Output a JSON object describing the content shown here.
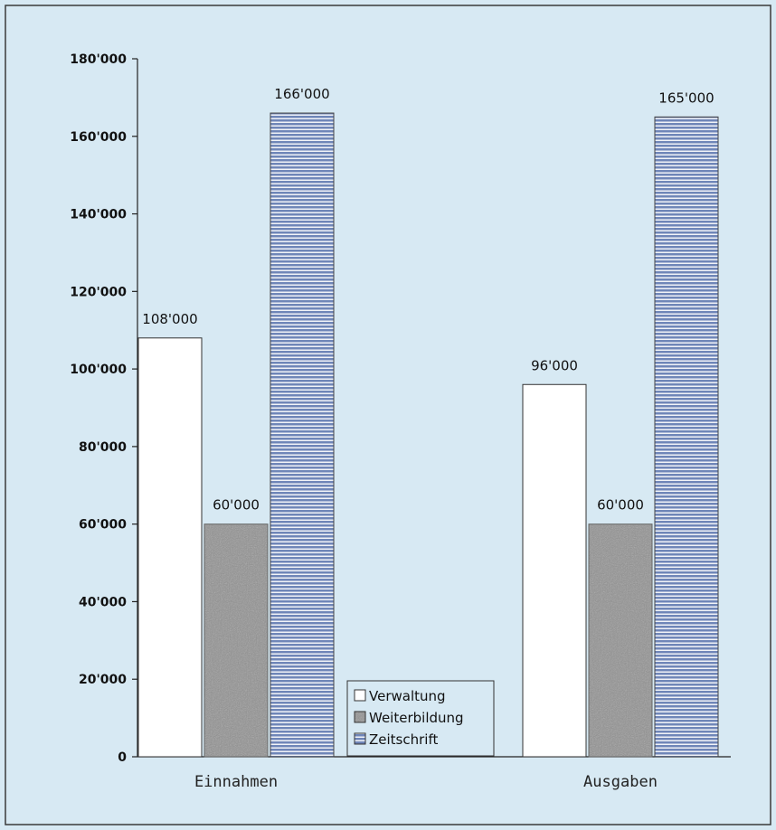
{
  "chart_data": {
    "type": "bar",
    "categories": [
      "Einnahmen",
      "Ausgaben"
    ],
    "series": [
      {
        "name": "Verwaltung",
        "values": [
          108000,
          96000
        ],
        "labels": [
          "108'000",
          "96'000"
        ],
        "color": "#ffffff"
      },
      {
        "name": "Weiterbildung",
        "values": [
          60000,
          60000
        ],
        "labels": [
          "60'000",
          "60'000"
        ],
        "color": "#8f8f8f"
      },
      {
        "name": "Zeitschrift",
        "values": [
          166000,
          165000
        ],
        "labels": [
          "166'000",
          "165'000"
        ],
        "color": "#6f86b8"
      }
    ],
    "yticks": [
      0,
      20000,
      40000,
      60000,
      80000,
      100000,
      120000,
      140000,
      160000,
      180000
    ],
    "ytick_labels": [
      "0",
      "20'000",
      "40'000",
      "60'000",
      "80'000",
      "100'000",
      "120'000",
      "140'000",
      "160'000",
      "180'000"
    ],
    "ylim": [
      0,
      180000
    ],
    "title": "",
    "xlabel": "",
    "ylabel": "",
    "legend_position": "bottom-center",
    "grid": false
  }
}
